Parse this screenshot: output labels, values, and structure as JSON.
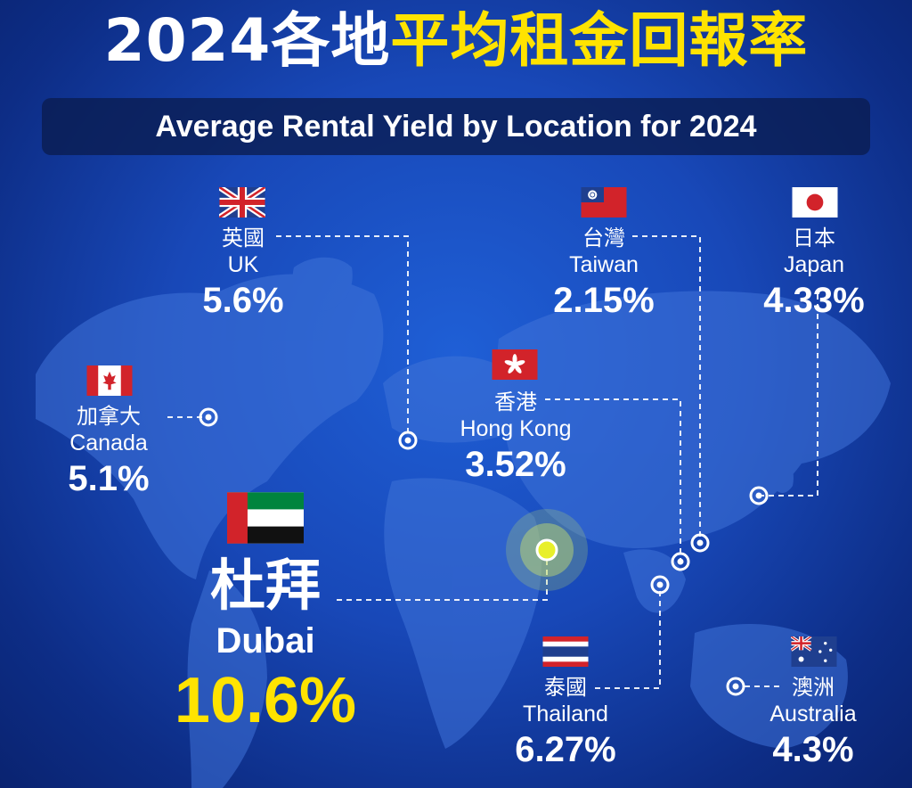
{
  "title": {
    "part_white": "2024各地",
    "part_yellow": "平均租金回報率"
  },
  "subtitle": "Average Rental Yield by Location for 2024",
  "colors": {
    "accent_yellow": "#ffe300",
    "background": "#1848b8",
    "text": "#ffffff"
  },
  "locations": [
    {
      "id": "uk",
      "zh": "英國",
      "en": "UK",
      "yield": "5.6%",
      "flag": "uk-flag-icon"
    },
    {
      "id": "taiwan",
      "zh": "台灣",
      "en": "Taiwan",
      "yield": "2.15%",
      "flag": "taiwan-flag-icon"
    },
    {
      "id": "japan",
      "zh": "日本",
      "en": "Japan",
      "yield": "4.33%",
      "flag": "japan-flag-icon"
    },
    {
      "id": "canada",
      "zh": "加拿大",
      "en": "Canada",
      "yield": "5.1%",
      "flag": "canada-flag-icon"
    },
    {
      "id": "hongkong",
      "zh": "香港",
      "en": "Hong Kong",
      "yield": "3.52%",
      "flag": "hongkong-flag-icon"
    },
    {
      "id": "dubai",
      "zh": "杜拜",
      "en": "Dubai",
      "yield": "10.6%",
      "flag": "uae-flag-icon"
    },
    {
      "id": "thailand",
      "zh": "泰國",
      "en": "Thailand",
      "yield": "6.27%",
      "flag": "thailand-flag-icon"
    },
    {
      "id": "australia",
      "zh": "澳洲",
      "en": "Australia",
      "yield": "4.3%",
      "flag": "australia-flag-icon"
    }
  ]
}
